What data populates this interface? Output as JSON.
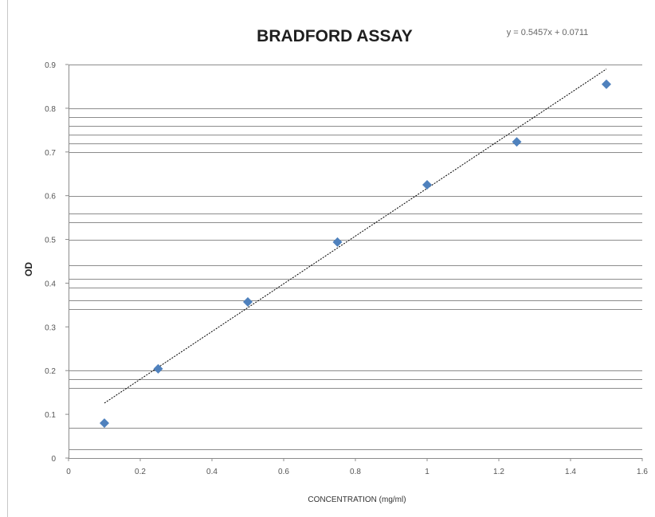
{
  "chart_data": {
    "type": "scatter",
    "title": "BRADFORD ASSAY",
    "equation": "y = 0.5457x + 0.0711",
    "xlabel": "CONCENTRATION (mg/ml)",
    "ylabel": "OD",
    "xlim": [
      0,
      1.6
    ],
    "ylim": [
      0,
      0.9
    ],
    "xticks": [
      0,
      0.2,
      0.4,
      0.6,
      0.8,
      1,
      1.2,
      1.4,
      1.6
    ],
    "xtick_labels": [
      "0",
      "0.2",
      "0.4",
      "0.6",
      "0.8",
      "1",
      "1.2",
      "1.4",
      "1.6"
    ],
    "yticks": [
      0,
      0.1,
      0.2,
      0.3,
      0.4,
      0.5,
      0.6,
      0.7,
      0.8,
      0.9
    ],
    "ytick_labels": [
      "0",
      "0.1",
      "0.2",
      "0.3",
      "0.4",
      "0.5",
      "0.6",
      "0.7",
      "0.8",
      "0.9"
    ],
    "gridlines_y": [
      0.02,
      0.07,
      0.16,
      0.18,
      0.2,
      0.34,
      0.36,
      0.39,
      0.41,
      0.44,
      0.5,
      0.54,
      0.56,
      0.6,
      0.7,
      0.72,
      0.74,
      0.76,
      0.78,
      0.8,
      0.9
    ],
    "grid": true,
    "legend": "none",
    "marker": "diamond",
    "series": [
      {
        "x": [
          0.1,
          0.25,
          0.5,
          0.75,
          1.0,
          1.25,
          1.5
        ],
        "y": [
          0.08,
          0.204,
          0.357,
          0.494,
          0.625,
          0.723,
          0.855
        ]
      }
    ],
    "trendline": {
      "type": "linear",
      "slope": 0.5457,
      "intercept": 0.0711,
      "x_range": [
        0.1,
        1.5
      ]
    },
    "colors": {
      "marker": "#4f81bd",
      "trendline": "#000000",
      "grid": "#8c8c8c",
      "axis": "#8c8c8c"
    }
  }
}
